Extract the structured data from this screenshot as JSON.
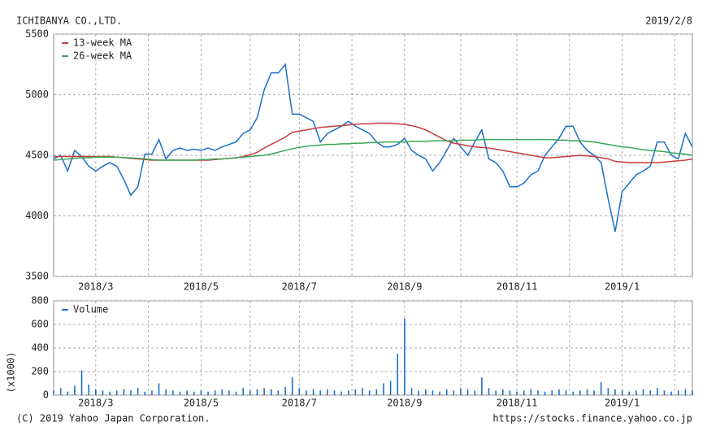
{
  "header": {
    "company": "ICHIBANYA CO.,LTD.",
    "date": "2019/2/8"
  },
  "footer": {
    "copyright": "(C) 2019 Yahoo Japan Corporation.",
    "url": "https://stocks.finance.yahoo.co.jp"
  },
  "chart_data": [
    {
      "type": "line",
      "grid": true,
      "legend": "upper left",
      "categories": [
        null,
        null,
        null,
        null,
        null,
        null,
        "2018/3",
        null,
        null,
        null,
        null,
        null,
        null,
        null,
        null,
        null,
        null,
        null,
        null,
        null,
        null,
        "2018/5",
        null,
        null,
        null,
        null,
        null,
        null,
        null,
        null,
        null,
        null,
        null,
        null,
        null,
        "2018/7",
        null,
        null,
        null,
        null,
        null,
        null,
        null,
        null,
        null,
        null,
        null,
        null,
        null,
        null,
        "2018/9",
        null,
        null,
        null,
        null,
        null,
        null,
        null,
        null,
        null,
        null,
        null,
        null,
        null,
        null,
        null,
        "2018/11",
        null,
        null,
        null,
        null,
        null,
        null,
        null,
        null,
        null,
        null,
        null,
        null,
        null,
        null,
        "2019/1",
        null,
        null,
        null,
        null,
        null,
        null,
        null,
        null,
        null,
        null
      ],
      "ylim": [
        3500,
        5500
      ],
      "yticks": [
        3500,
        4000,
        4500,
        5000,
        5500
      ],
      "series": [
        {
          "color": "#1a6fcc",
          "values": [
            4470,
            4500,
            4370,
            4540,
            4490,
            4410,
            4370,
            4410,
            4440,
            4410,
            4300,
            4170,
            4240,
            4510,
            4510,
            4630,
            4470,
            4540,
            4560,
            4540,
            4550,
            4540,
            4560,
            4540,
            4570,
            4590,
            4610,
            4680,
            4710,
            4810,
            5040,
            5180,
            5180,
            5250,
            4840,
            4840,
            4810,
            4780,
            4610,
            4680,
            4710,
            4740,
            4780,
            4740,
            4710,
            4680,
            4610,
            4570,
            4570,
            4590,
            4640,
            4540,
            4500,
            4470,
            4370,
            4440,
            4540,
            4640,
            4570,
            4500,
            4610,
            4710,
            4470,
            4440,
            4370,
            4240,
            4240,
            4270,
            4340,
            4370,
            4500,
            4570,
            4640,
            4740,
            4740,
            4610,
            4540,
            4500,
            4440,
            4140,
            3870,
            4200,
            4270,
            4340,
            4370,
            4410,
            4610,
            4610,
            4500,
            4470,
            4680,
            4570
          ]
        },
        {
          "name": "13-week MA",
          "color": "#c83c3c",
          "values": [
            4490,
            4490,
            4490,
            4490,
            4490,
            4490,
            4490,
            4490,
            4490,
            4485,
            4480,
            4475,
            4470,
            4465,
            4460,
            4460,
            4460,
            4460,
            4460,
            4460,
            4460,
            4460,
            4460,
            4465,
            4470,
            4475,
            4480,
            4490,
            4505,
            4525,
            4560,
            4590,
            4620,
            4650,
            4690,
            4700,
            4710,
            4720,
            4730,
            4735,
            4740,
            4745,
            4750,
            4755,
            4760,
            4760,
            4765,
            4765,
            4765,
            4760,
            4755,
            4745,
            4730,
            4710,
            4680,
            4650,
            4620,
            4600,
            4590,
            4580,
            4570,
            4565,
            4560,
            4550,
            4540,
            4530,
            4520,
            4510,
            4500,
            4490,
            4480,
            4480,
            4485,
            4490,
            4495,
            4500,
            4495,
            4490,
            4480,
            4470,
            4450,
            4445,
            4440,
            4440,
            4440,
            4440,
            4440,
            4445,
            4450,
            4455,
            4460,
            4470
          ]
        },
        {
          "name": "26-week MA",
          "color": "#3aa65a",
          "values": [
            4460,
            4465,
            4470,
            4475,
            4480,
            4480,
            4485,
            4485,
            4485,
            4485,
            4480,
            4480,
            4475,
            4470,
            4465,
            4460,
            4460,
            4460,
            4460,
            4460,
            4460,
            4465,
            4465,
            4470,
            4470,
            4475,
            4480,
            4485,
            4490,
            4495,
            4500,
            4510,
            4525,
            4540,
            4555,
            4565,
            4575,
            4580,
            4585,
            4590,
            4590,
            4595,
            4595,
            4600,
            4600,
            4605,
            4605,
            4610,
            4610,
            4610,
            4610,
            4615,
            4615,
            4615,
            4620,
            4620,
            4620,
            4620,
            4625,
            4625,
            4625,
            4630,
            4630,
            4630,
            4630,
            4630,
            4630,
            4630,
            4630,
            4630,
            4630,
            4630,
            4625,
            4625,
            4620,
            4620,
            4615,
            4610,
            4600,
            4590,
            4580,
            4570,
            4565,
            4555,
            4545,
            4540,
            4535,
            4530,
            4520,
            4515,
            4510,
            4500
          ]
        }
      ]
    },
    {
      "type": "bar",
      "grid": true,
      "legend": "upper left",
      "ylabel": "(x1000)",
      "categories": [
        null,
        null,
        null,
        null,
        null,
        null,
        "2018/3",
        null,
        null,
        null,
        null,
        null,
        null,
        null,
        null,
        null,
        null,
        null,
        null,
        null,
        null,
        "2018/5",
        null,
        null,
        null,
        null,
        null,
        null,
        null,
        null,
        null,
        null,
        null,
        null,
        null,
        "2018/7",
        null,
        null,
        null,
        null,
        null,
        null,
        null,
        null,
        null,
        null,
        null,
        null,
        null,
        null,
        "2018/9",
        null,
        null,
        null,
        null,
        null,
        null,
        null,
        null,
        null,
        null,
        null,
        null,
        null,
        null,
        null,
        "2018/11",
        null,
        null,
        null,
        null,
        null,
        null,
        null,
        null,
        null,
        null,
        null,
        null,
        null,
        null,
        "2019/1",
        null,
        null,
        null,
        null,
        null,
        null,
        null,
        null,
        null,
        null
      ],
      "ylim": [
        0,
        800
      ],
      "yticks": [
        0,
        200,
        400,
        600,
        800
      ],
      "series": [
        {
          "name": "Volume",
          "color": "#1a6fcc",
          "values": [
            40,
            60,
            30,
            80,
            210,
            90,
            50,
            40,
            30,
            40,
            50,
            40,
            60,
            30,
            40,
            100,
            50,
            40,
            30,
            40,
            30,
            40,
            30,
            40,
            50,
            40,
            30,
            60,
            40,
            50,
            60,
            50,
            40,
            70,
            150,
            60,
            40,
            50,
            40,
            50,
            40,
            30,
            40,
            50,
            60,
            40,
            50,
            100,
            120,
            350,
            650,
            60,
            40,
            50,
            40,
            30,
            50,
            40,
            60,
            50,
            40,
            150,
            60,
            40,
            50,
            40,
            30,
            40,
            50,
            40,
            30,
            40,
            50,
            40,
            30,
            40,
            50,
            40,
            110,
            60,
            50,
            40,
            30,
            40,
            50,
            40,
            60,
            40,
            30,
            40,
            50,
            40
          ]
        }
      ]
    }
  ]
}
